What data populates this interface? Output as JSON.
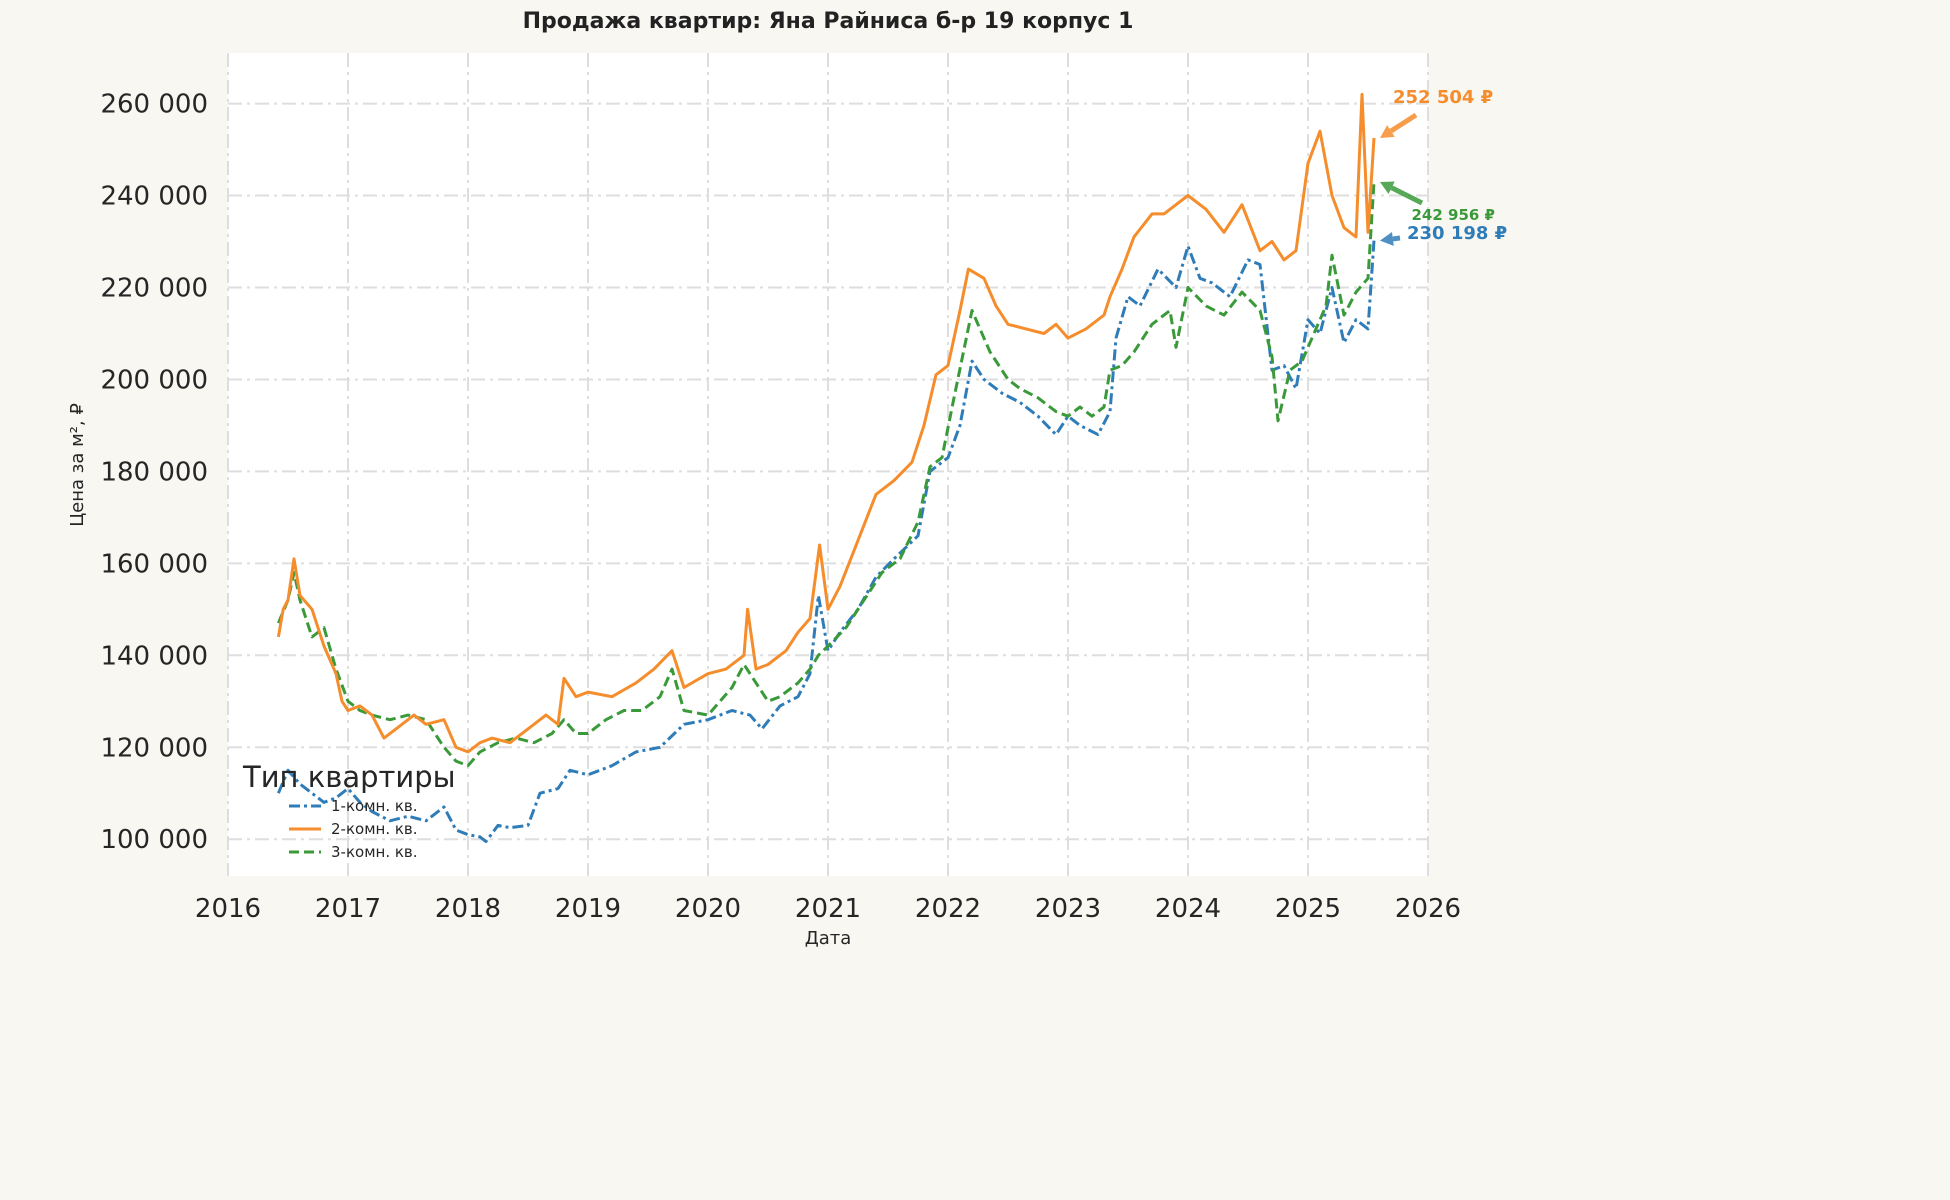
{
  "chart_data": {
    "type": "line",
    "title": "Продажа квартир: Яна Райниса б-р 19 корпус 1",
    "xlabel": "Дата",
    "ylabel": "Цена за м², ₽",
    "xlim": [
      2016,
      2026
    ],
    "ylim": [
      92000,
      271000
    ],
    "xticks": [
      "2016",
      "2017",
      "2018",
      "2019",
      "2020",
      "2021",
      "2022",
      "2023",
      "2024",
      "2025",
      "2026"
    ],
    "yticks": [
      "100 000",
      "120 000",
      "140 000",
      "160 000",
      "180 000",
      "200 000",
      "220 000",
      "240 000",
      "260 000"
    ],
    "grid": true,
    "legend": {
      "title": "Тип квартиры",
      "position": "bottom-left"
    },
    "series": [
      {
        "name": "1-комн. кв.",
        "color": "#2f7db8",
        "dash": "dashdot",
        "x": [
          2016.42,
          2016.5,
          2016.6,
          2016.7,
          2016.8,
          2016.9,
          2017.0,
          2017.1,
          2017.2,
          2017.35,
          2017.5,
          2017.65,
          2017.8,
          2017.9,
          2018.0,
          2018.1,
          2018.15,
          2018.25,
          2018.35,
          2018.5,
          2018.6,
          2018.75,
          2018.85,
          2019.0,
          2019.2,
          2019.4,
          2019.6,
          2019.8,
          2020.0,
          2020.2,
          2020.35,
          2020.45,
          2020.6,
          2020.75,
          2020.85,
          2020.92,
          2021.0,
          2021.1,
          2021.25,
          2021.4,
          2021.55,
          2021.75,
          2021.85,
          2022.0,
          2022.1,
          2022.2,
          2022.3,
          2022.45,
          2022.6,
          2022.75,
          2022.9,
          2023.0,
          2023.1,
          2023.25,
          2023.35,
          2023.4,
          2023.5,
          2023.6,
          2023.75,
          2023.9,
          2024.0,
          2024.1,
          2024.2,
          2024.35,
          2024.5,
          2024.6,
          2024.7,
          2024.8,
          2024.9,
          2025.0,
          2025.1,
          2025.2,
          2025.3,
          2025.4,
          2025.5,
          2025.55
        ],
        "values": [
          110000,
          115000,
          112000,
          110000,
          108000,
          109000,
          111000,
          108000,
          106000,
          104000,
          105000,
          104000,
          107000,
          102000,
          101000,
          100500,
          99500,
          103000,
          102500,
          103000,
          110000,
          111000,
          115000,
          114000,
          116000,
          119000,
          120000,
          125000,
          126000,
          128000,
          127000,
          124000,
          129000,
          131000,
          136000,
          153000,
          141000,
          145000,
          150000,
          157000,
          161000,
          166000,
          180000,
          183000,
          190000,
          204000,
          200000,
          197000,
          195000,
          192000,
          188000,
          192000,
          190000,
          188000,
          193000,
          209000,
          218000,
          216000,
          224000,
          220000,
          229000,
          222000,
          221000,
          218000,
          226000,
          225000,
          202000,
          203000,
          198000,
          213000,
          210000,
          220000,
          208000,
          213000,
          211000,
          230198
        ]
      },
      {
        "name": "2-комн. кв.",
        "color": "#f58d2c",
        "dash": "solid",
        "x": [
          2016.42,
          2016.46,
          2016.5,
          2016.55,
          2016.6,
          2016.7,
          2016.8,
          2016.9,
          2016.95,
          2017.0,
          2017.1,
          2017.2,
          2017.3,
          2017.4,
          2017.55,
          2017.65,
          2017.8,
          2017.9,
          2018.0,
          2018.1,
          2018.2,
          2018.35,
          2018.5,
          2018.65,
          2018.75,
          2018.8,
          2018.9,
          2019.0,
          2019.2,
          2019.4,
          2019.55,
          2019.7,
          2019.8,
          2020.0,
          2020.15,
          2020.3,
          2020.33,
          2020.4,
          2020.5,
          2020.65,
          2020.75,
          2020.85,
          2020.93,
          2021.0,
          2021.1,
          2021.25,
          2021.4,
          2021.55,
          2021.7,
          2021.8,
          2021.9,
          2022.0,
          2022.1,
          2022.17,
          2022.3,
          2022.4,
          2022.5,
          2022.65,
          2022.8,
          2022.9,
          2023.0,
          2023.15,
          2023.3,
          2023.35,
          2023.45,
          2023.55,
          2023.7,
          2023.8,
          2023.9,
          2024.0,
          2024.15,
          2024.3,
          2024.45,
          2024.6,
          2024.7,
          2024.8,
          2024.9,
          2025.0,
          2025.1,
          2025.2,
          2025.3,
          2025.4,
          2025.45,
          2025.5,
          2025.55
        ],
        "values": [
          144000,
          150000,
          152000,
          161000,
          153000,
          150000,
          142000,
          136000,
          130000,
          128000,
          129000,
          127000,
          122000,
          124000,
          127000,
          125000,
          126000,
          120000,
          119000,
          121000,
          122000,
          121000,
          124000,
          127000,
          125000,
          135000,
          131000,
          132000,
          131000,
          134000,
          137000,
          141000,
          133000,
          136000,
          137000,
          140000,
          150000,
          137000,
          138000,
          141000,
          145000,
          148000,
          164000,
          150000,
          155000,
          165000,
          175000,
          178000,
          182000,
          190000,
          201000,
          203000,
          215000,
          224000,
          222000,
          216000,
          212000,
          211000,
          210000,
          212000,
          209000,
          211000,
          214000,
          218000,
          224000,
          231000,
          236000,
          236000,
          238000,
          240000,
          237000,
          232000,
          238000,
          228000,
          230000,
          226000,
          228000,
          247000,
          254000,
          240000,
          233000,
          231000,
          262000,
          232000,
          252504
        ]
      },
      {
        "name": "3-комн. кв.",
        "color": "#3a9a3a",
        "dash": "dashed",
        "x": [
          2016.42,
          2016.5,
          2016.55,
          2016.6,
          2016.7,
          2016.8,
          2016.9,
          2017.0,
          2017.1,
          2017.2,
          2017.35,
          2017.5,
          2017.65,
          2017.8,
          2017.9,
          2018.0,
          2018.1,
          2018.25,
          2018.4,
          2018.55,
          2018.7,
          2018.8,
          2018.9,
          2019.0,
          2019.15,
          2019.3,
          2019.45,
          2019.6,
          2019.7,
          2019.8,
          2020.0,
          2020.2,
          2020.3,
          2020.4,
          2020.5,
          2020.6,
          2020.75,
          2020.85,
          2020.92,
          2021.0,
          2021.15,
          2021.3,
          2021.45,
          2021.6,
          2021.75,
          2021.85,
          2021.95,
          2022.05,
          2022.2,
          2022.35,
          2022.5,
          2022.6,
          2022.75,
          2022.9,
          2023.0,
          2023.1,
          2023.2,
          2023.3,
          2023.35,
          2023.45,
          2023.55,
          2023.7,
          2023.85,
          2023.9,
          2024.0,
          2024.15,
          2024.3,
          2024.45,
          2024.6,
          2024.7,
          2024.75,
          2024.85,
          2024.95,
          2025.05,
          2025.15,
          2025.2,
          2025.3,
          2025.4,
          2025.5,
          2025.55
        ],
        "values": [
          147000,
          152000,
          158000,
          152000,
          144000,
          146000,
          137000,
          130000,
          128000,
          127000,
          126000,
          127000,
          126000,
          120000,
          117000,
          116000,
          119000,
          121000,
          122000,
          121000,
          123000,
          126000,
          123000,
          123000,
          126000,
          128000,
          128000,
          131000,
          137000,
          128000,
          127000,
          133000,
          138000,
          134000,
          130000,
          131000,
          134000,
          137000,
          140000,
          142000,
          146000,
          152000,
          158000,
          161000,
          169000,
          181000,
          183000,
          196000,
          215000,
          206000,
          200000,
          198000,
          196000,
          193000,
          192000,
          194000,
          192000,
          194000,
          202000,
          203000,
          206000,
          212000,
          215000,
          207000,
          220000,
          216000,
          214000,
          219000,
          215000,
          205000,
          191000,
          202000,
          204000,
          210000,
          216000,
          227000,
          214000,
          219000,
          222000,
          242956
        ]
      }
    ],
    "annotations": [
      {
        "text": "252 504 ₽",
        "color": "#f58d2c"
      },
      {
        "text": "242 956 ₽",
        "color": "#3a9a3a"
      },
      {
        "text": "230 198 ₽",
        "color": "#2f7db8"
      }
    ]
  }
}
